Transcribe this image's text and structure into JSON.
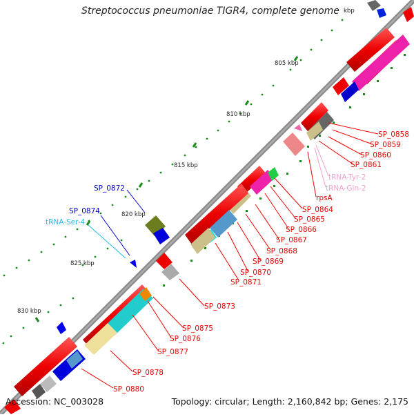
{
  "map": {
    "title": "Streptococcus pneumoniae TIGR4, complete genome",
    "accession": "Accession: NC_003028",
    "summary": "Topology: circular; Length: 2,160,842 bp; Genes: 2,175"
  },
  "ticks": [
    "805 kbp",
    "810 kbp",
    "815 kbp",
    "820 kbp",
    "825 kbp",
    "830 kbp"
  ],
  "tick_partial": "kbp",
  "genes": [
    "SP_0858",
    "SP_0859",
    "SP_0860",
    "SP_0861",
    "tRNA-Tyr-2",
    "tRNA-Gln-2",
    "rpsA",
    "SP_0864",
    "SP_0865",
    "SP_0866",
    "SP_0867",
    "SP_0868",
    "SP_0869",
    "SP_0870",
    "SP_0871",
    "SP_0872",
    "SP_0873",
    "SP_0874",
    "tRNA-Ser-4",
    "SP_0875",
    "SP_0876",
    "SP_0877",
    "SP_0878",
    "SP_0880"
  ],
  "colors": {
    "cds": "#ee0000",
    "trna": "#ee88cc",
    "trna_ser": "#22bbee",
    "gene_blue": "#0000dd",
    "backbone": "#888888"
  }
}
